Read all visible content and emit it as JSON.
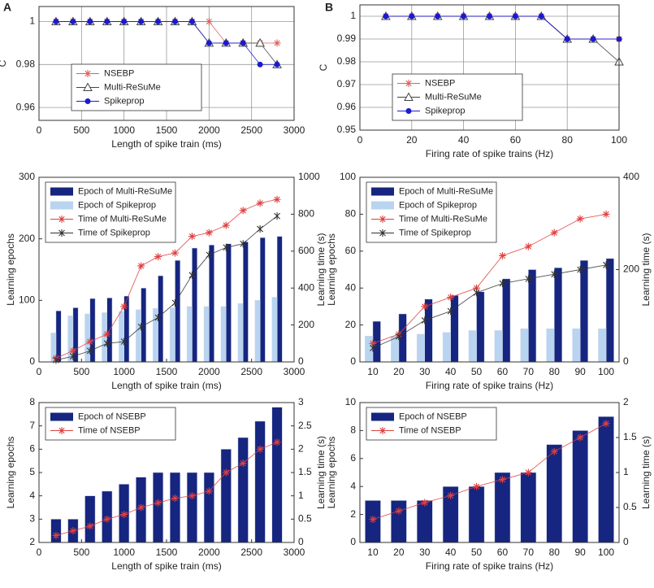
{
  "chart_data": [
    {
      "type": "line",
      "panel": "A",
      "xlabel": "Length of spike train (ms)",
      "ylabel": "C",
      "x": [
        200,
        400,
        600,
        800,
        1000,
        1200,
        1400,
        1600,
        1800,
        2000,
        2200,
        2400,
        2600,
        2800
      ],
      "xlim": [
        0,
        3000
      ],
      "xticks": [
        0,
        500,
        1000,
        1500,
        2000,
        2500,
        3000
      ],
      "ylim": [
        0.954,
        1.007
      ],
      "yticks": [
        0.96,
        0.98,
        1
      ],
      "grid": true,
      "legend": "lower left",
      "series": [
        {
          "name": "NSEBP",
          "color": "#e06060",
          "marker": "star",
          "values": [
            1,
            1,
            1,
            1,
            1,
            1,
            1,
            1,
            1,
            1,
            0.99,
            0.99,
            0.99,
            0.99
          ]
        },
        {
          "name": "Multi-ReSuMe",
          "color": "#444444",
          "marker": "triangle",
          "values": [
            1,
            1,
            1,
            1,
            1,
            1,
            1,
            1,
            1,
            0.99,
            0.99,
            0.99,
            0.99,
            0.98
          ]
        },
        {
          "name": "Spikeprop",
          "color": "#1a1ad0",
          "marker": "dot",
          "values": [
            1,
            1,
            1,
            1,
            1,
            1,
            1,
            1,
            1,
            0.99,
            0.99,
            0.99,
            0.98,
            0.98
          ]
        }
      ]
    },
    {
      "type": "line",
      "panel": "B",
      "xlabel": "Firing rate of spike trains (Hz)",
      "ylabel": "C",
      "x": [
        10,
        20,
        30,
        40,
        50,
        60,
        70,
        80,
        90,
        100
      ],
      "xlim": [
        0,
        100
      ],
      "xticks": [
        0,
        20,
        40,
        60,
        80,
        100
      ],
      "ylim": [
        0.95,
        1.005
      ],
      "yticks": [
        0.95,
        0.96,
        0.97,
        0.98,
        0.99,
        1
      ],
      "grid": true,
      "legend": "lower left",
      "series": [
        {
          "name": "NSEBP",
          "color": "#e06060",
          "marker": "star",
          "values": [
            1,
            1,
            1,
            1,
            1,
            1,
            1,
            0.99,
            0.99,
            0.99
          ]
        },
        {
          "name": "Multi-ReSuMe",
          "color": "#444444",
          "marker": "triangle",
          "values": [
            1,
            1,
            1,
            1,
            1,
            1,
            1,
            0.99,
            0.99,
            0.98
          ]
        },
        {
          "name": "Spikeprop",
          "color": "#1a1ad0",
          "marker": "dot",
          "values": [
            1,
            1,
            1,
            1,
            1,
            1,
            1,
            0.99,
            0.99,
            0.99
          ]
        }
      ]
    },
    {
      "type": "bar_line",
      "xlabel": "Length of spike train (ms)",
      "ylabel": "Learning epochs",
      "y2label": "Learning time (s)",
      "x": [
        200,
        400,
        600,
        800,
        1000,
        1200,
        1400,
        1600,
        1800,
        2000,
        2200,
        2400,
        2600,
        2800
      ],
      "xlim": [
        0,
        3000
      ],
      "xticks": [
        0,
        500,
        1000,
        1500,
        2000,
        2500,
        3000
      ],
      "ylim": [
        0,
        300
      ],
      "yticks": [
        0,
        100,
        200,
        300
      ],
      "y2lim": [
        0,
        1000
      ],
      "y2ticks": [
        0,
        200,
        400,
        600,
        800,
        1000
      ],
      "grid": false,
      "legend": "upper left",
      "series": [
        {
          "name": "Epoch of Multi-ReSuMe",
          "color": "#16257f",
          "kind": "bar",
          "values": [
            83,
            88,
            103,
            104,
            107,
            120,
            140,
            165,
            185,
            190,
            192,
            195,
            202,
            204
          ]
        },
        {
          "name": "Epoch of Spikeprop",
          "color": "#b8d4f0",
          "kind": "bar",
          "values": [
            47,
            75,
            78,
            80,
            82,
            85,
            87,
            88,
            90,
            90,
            90,
            95,
            100,
            105
          ]
        },
        {
          "name": "Time of Multi-ReSuMe",
          "color": "#e04040",
          "kind": "line",
          "marker": "star",
          "axis": "y2",
          "values": [
            20,
            60,
            110,
            150,
            300,
            520,
            570,
            590,
            680,
            700,
            740,
            820,
            860,
            880
          ]
        },
        {
          "name": "Time of Spikeprop",
          "color": "#333333",
          "kind": "line",
          "marker": "asterisk",
          "axis": "y2",
          "values": [
            10,
            30,
            60,
            100,
            110,
            190,
            240,
            320,
            470,
            580,
            620,
            640,
            720,
            790
          ]
        }
      ]
    },
    {
      "type": "bar_line",
      "xlabel": "Firing rate of spike trains (Hz)",
      "ylabel": "Learning epochs",
      "y2label": "Learning time (s)",
      "categories": [
        "10",
        "20",
        "30",
        "40",
        "50",
        "60",
        "70",
        "80",
        "90",
        "100"
      ],
      "ylim": [
        0,
        100
      ],
      "yticks": [
        0,
        20,
        40,
        60,
        80,
        100
      ],
      "y2lim": [
        0,
        400
      ],
      "y2ticks": [
        0,
        200,
        400
      ],
      "grid": false,
      "legend": "upper left",
      "series": [
        {
          "name": "Epoch of Multi-ReSuMe",
          "color": "#16257f",
          "kind": "bar",
          "values": [
            22,
            26,
            34,
            36,
            38,
            45,
            50,
            51,
            55,
            56
          ]
        },
        {
          "name": "Epoch of Spikeprop",
          "color": "#b8d4f0",
          "kind": "bar",
          "values": [
            14,
            14,
            15,
            16,
            17,
            17,
            18,
            18,
            18,
            18
          ]
        },
        {
          "name": "Time of Multi-ReSuMe",
          "color": "#e04040",
          "kind": "line",
          "marker": "star",
          "axis": "y2",
          "values": [
            40,
            60,
            120,
            140,
            160,
            230,
            250,
            280,
            310,
            320
          ]
        },
        {
          "name": "Time of Spikeprop",
          "color": "#333333",
          "kind": "line",
          "marker": "asterisk",
          "axis": "y2",
          "values": [
            30,
            55,
            90,
            110,
            150,
            170,
            180,
            190,
            200,
            210
          ]
        }
      ]
    },
    {
      "type": "bar_line",
      "xlabel": "Length of spike train (ms)",
      "ylabel": "Learning epochs",
      "y2label": "Learning time (s)",
      "x": [
        200,
        400,
        600,
        800,
        1000,
        1200,
        1400,
        1600,
        1800,
        2000,
        2200,
        2400,
        2600,
        2800
      ],
      "xlim": [
        0,
        3000
      ],
      "xticks": [
        0,
        500,
        1000,
        1500,
        2000,
        2500,
        3000
      ],
      "ylim": [
        2,
        8
      ],
      "yticks": [
        2,
        3,
        4,
        5,
        6,
        7,
        8
      ],
      "y2lim": [
        0,
        3
      ],
      "y2ticks": [
        0,
        0.5,
        1,
        1.5,
        2,
        2.5,
        3
      ],
      "grid": false,
      "legend": "upper left",
      "series": [
        {
          "name": "Epoch of NSEBP",
          "color": "#16257f",
          "kind": "bar",
          "values": [
            3,
            3,
            4,
            4.2,
            4.5,
            4.8,
            5,
            5,
            5,
            5,
            6,
            6.5,
            7.2,
            7.8
          ]
        },
        {
          "name": "Time of NSEBP",
          "color": "#e04040",
          "kind": "line",
          "marker": "star",
          "axis": "y2",
          "values": [
            0.15,
            0.25,
            0.35,
            0.5,
            0.6,
            0.75,
            0.85,
            0.95,
            1.0,
            1.1,
            1.5,
            1.7,
            2.0,
            2.15
          ]
        }
      ]
    },
    {
      "type": "bar_line",
      "xlabel": "Firing rate of spike trains (Hz)",
      "ylabel": "Learning epochs",
      "y2label": "Learning time (s)",
      "categories": [
        "10",
        "20",
        "30",
        "40",
        "50",
        "60",
        "70",
        "80",
        "90",
        "100"
      ],
      "ylim": [
        0,
        10
      ],
      "yticks": [
        0,
        2,
        4,
        6,
        8,
        10
      ],
      "y2lim": [
        0,
        2
      ],
      "y2ticks": [
        0,
        0.5,
        1,
        1.5,
        2
      ],
      "grid": false,
      "legend": "upper left",
      "series": [
        {
          "name": "Epoch of NSEBP",
          "color": "#16257f",
          "kind": "bar",
          "values": [
            3,
            3,
            3,
            4,
            4,
            5,
            5,
            7,
            8,
            9
          ]
        },
        {
          "name": "Time of NSEBP",
          "color": "#e04040",
          "kind": "line",
          "marker": "star",
          "axis": "y2",
          "values": [
            0.33,
            0.45,
            0.57,
            0.67,
            0.8,
            0.9,
            1.0,
            1.3,
            1.5,
            1.7
          ]
        }
      ]
    }
  ]
}
